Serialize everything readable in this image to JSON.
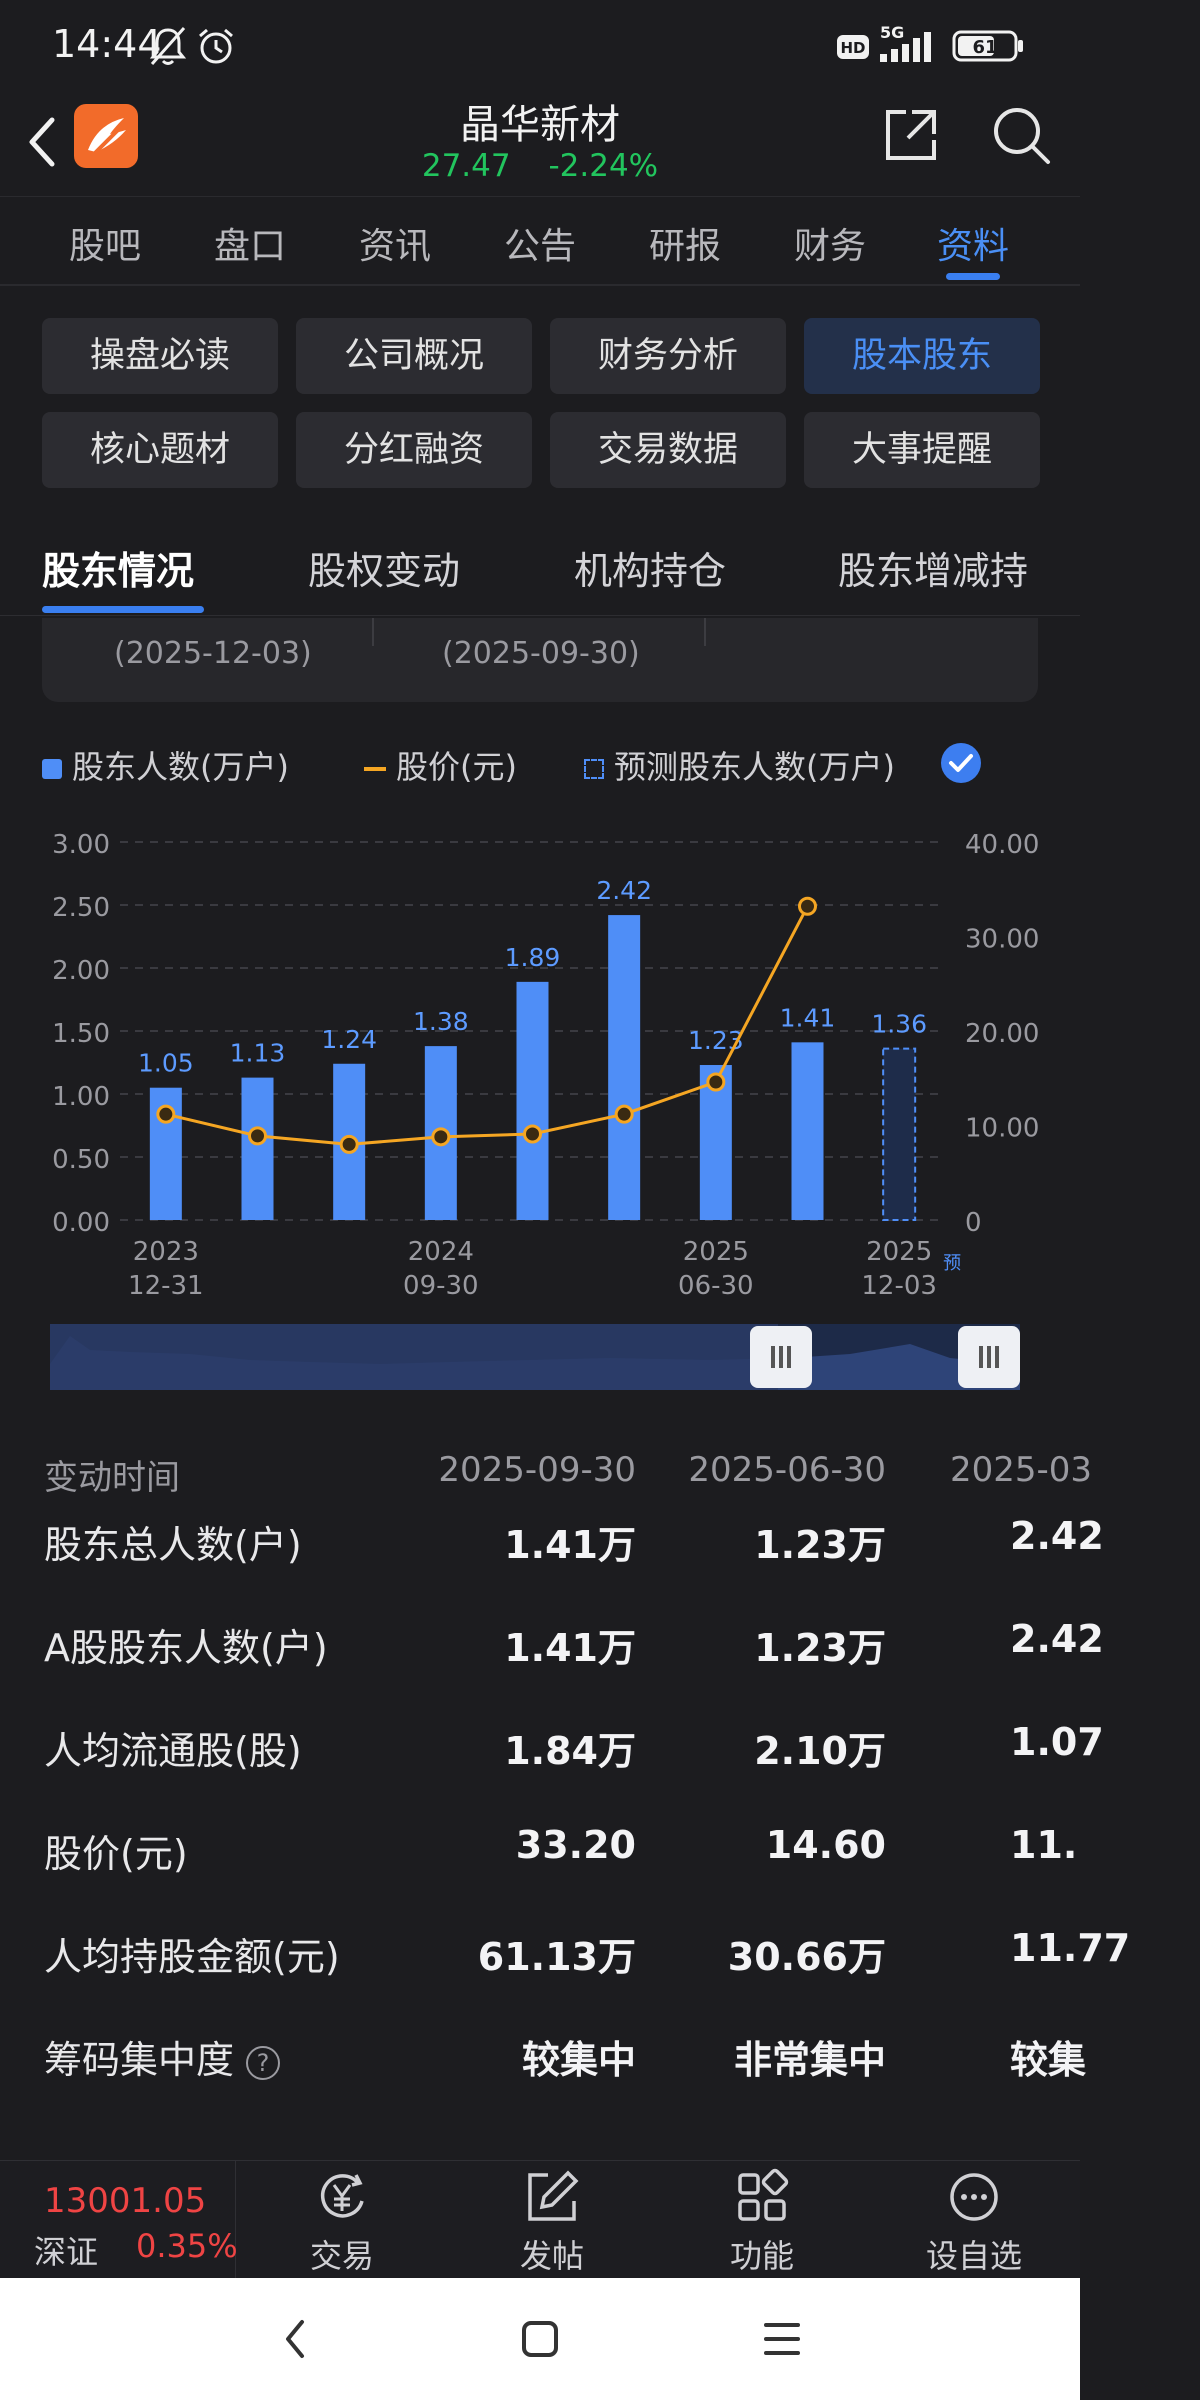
{
  "status_bar": {
    "time": "14:44",
    "network": "5G",
    "hd": "HD",
    "battery": "61"
  },
  "header": {
    "stock_name": "晶华新材",
    "price": "27.47",
    "change_pct": "-2.24%"
  },
  "main_tabs": [
    "股吧",
    "盘口",
    "资讯",
    "公告",
    "研报",
    "财务",
    "资料"
  ],
  "chips": [
    "操盘必读",
    "公司概况",
    "财务分析",
    "股本股东",
    "核心题材",
    "分红融资",
    "交易数据",
    "大事提醒"
  ],
  "sub_tabs": [
    "股东情况",
    "股权变动",
    "机构持仓",
    "股东增减持"
  ],
  "summary": {
    "dates": [
      "(2025-12-03)",
      "(2025-09-30)"
    ]
  },
  "legend": {
    "holders": "股东人数(万户)",
    "price": "股价(元)",
    "forecast": "预测股东人数(万户)"
  },
  "chart_data": {
    "type": "bar",
    "categories": [
      "2023-12-31",
      "",
      "",
      "2024-09-30",
      "",
      "",
      "2025-06-30",
      "",
      "2025-12-03"
    ],
    "x_tick_labels": [
      {
        "top": "2023",
        "bottom": "12-31"
      },
      {
        "top": "2024",
        "bottom": "09-30"
      },
      {
        "top": "2025",
        "bottom": "06-30"
      },
      {
        "top": "2025",
        "bottom": "12-03",
        "suffix": "预"
      }
    ],
    "series": [
      {
        "name": "股东人数(万户)",
        "type": "bar",
        "values": [
          1.05,
          1.13,
          1.24,
          1.38,
          1.89,
          2.42,
          1.23,
          1.41,
          null
        ],
        "labels": [
          "1.05",
          "1.13",
          "1.24",
          "1.38",
          "1.89",
          "2.42",
          "1.23",
          "1.41",
          ""
        ]
      },
      {
        "name": "预测股东人数(万户)",
        "type": "bar-forecast",
        "values": [
          null,
          null,
          null,
          null,
          null,
          null,
          null,
          null,
          1.36
        ],
        "labels": [
          "",
          "",
          "",
          "",
          "",
          "",
          "",
          "",
          "1.36"
        ]
      },
      {
        "name": "股价(元)",
        "type": "line",
        "values": [
          11.2,
          8.9,
          8.0,
          8.8,
          9.1,
          11.2,
          14.6,
          33.2,
          null
        ]
      }
    ],
    "y_left": {
      "ticks": [
        "3.00",
        "2.50",
        "2.00",
        "1.50",
        "1.00",
        "0.50",
        "0.00"
      ],
      "ylim": [
        0,
        3
      ]
    },
    "y_right": {
      "ticks": [
        "40.00",
        "30.00",
        "20.00",
        "10.00",
        "0"
      ],
      "ylim": [
        0,
        40
      ]
    },
    "colors": {
      "bar": "#4f8ef7",
      "line": "#f5a623",
      "forecast": "#4f8ef7"
    }
  },
  "table": {
    "header": {
      "label": "变动时间",
      "cols": [
        "2025-09-30",
        "2025-06-30",
        "2025-03"
      ]
    },
    "rows": [
      {
        "label": "股东总人数(户)",
        "vals": [
          "1.41万",
          "1.23万",
          "2.42"
        ]
      },
      {
        "label": "A股股东人数(户)",
        "vals": [
          "1.41万",
          "1.23万",
          "2.42"
        ]
      },
      {
        "label": "人均流通股(股)",
        "vals": [
          "1.84万",
          "2.10万",
          "1.07"
        ]
      },
      {
        "label": "股价(元)",
        "vals": [
          "33.20",
          "14.60",
          "11."
        ]
      },
      {
        "label": "人均持股金额(元)",
        "vals": [
          "61.13万",
          "30.66万",
          "11.77"
        ]
      },
      {
        "label": "筹码集中度",
        "vals": [
          "较集中",
          "非常集中",
          "较集"
        ],
        "help": "?"
      }
    ]
  },
  "bottom_bar": {
    "index_value": "13001.05",
    "index_name": "深证",
    "index_change": "0.35%",
    "nav": [
      "交易",
      "发帖",
      "功能",
      "设自选"
    ]
  }
}
